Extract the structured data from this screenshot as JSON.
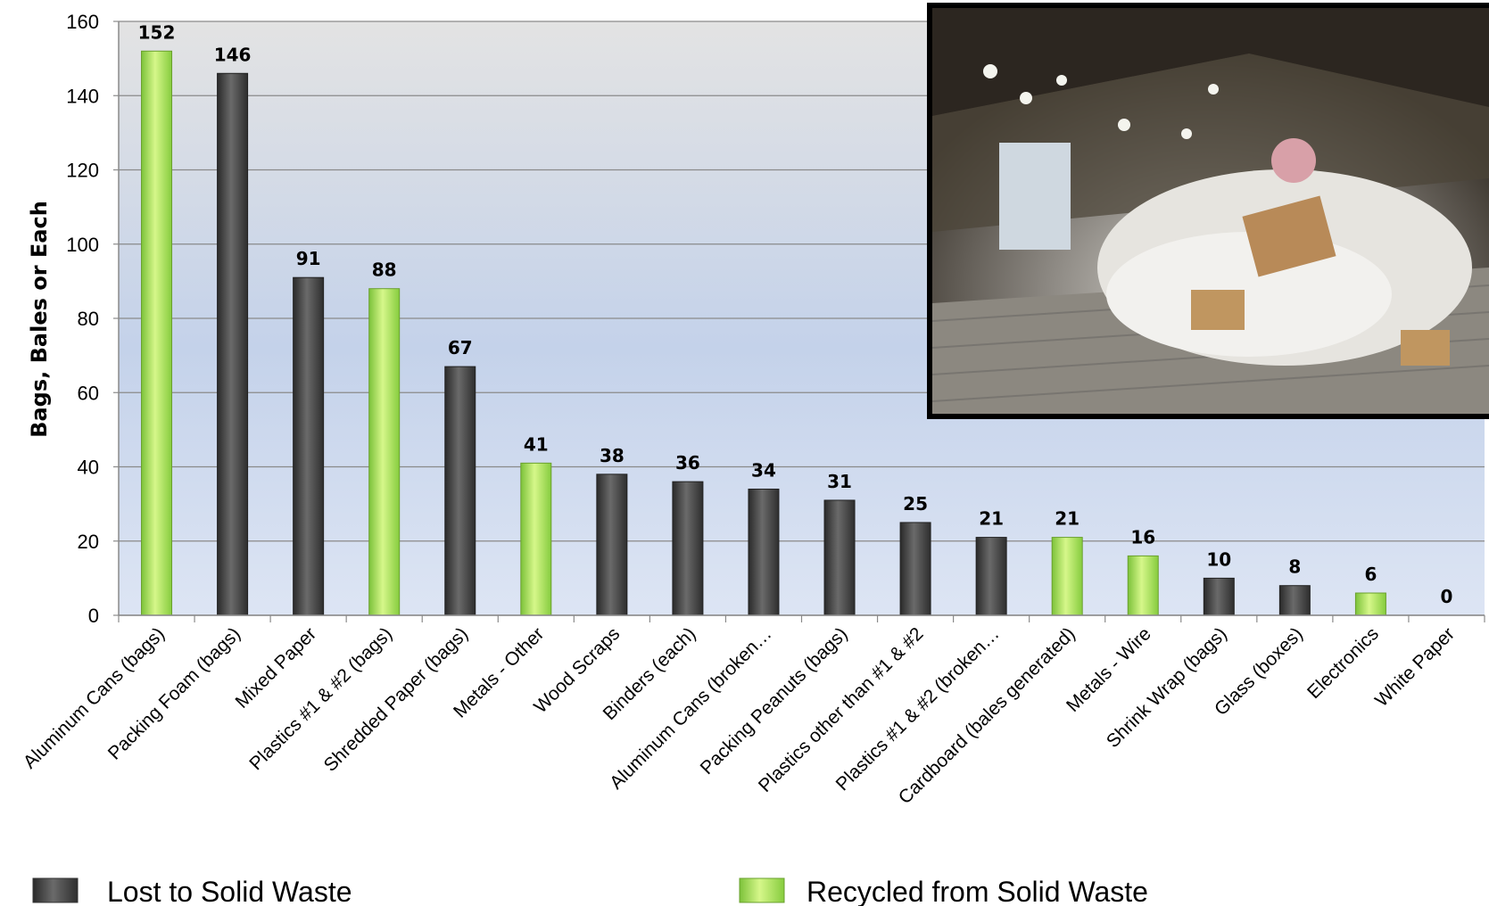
{
  "chart_data": {
    "type": "bar",
    "title": "",
    "xlabel": "",
    "ylabel": "Bags, Bales or Each",
    "ylim": [
      0,
      160
    ],
    "yticks": [
      0,
      20,
      40,
      60,
      80,
      100,
      120,
      140,
      160
    ],
    "grid": true,
    "legend_position": "bottom",
    "categories": [
      "Aluminum Cans (bags)",
      "Packing Foam (bags)",
      "Mixed Paper",
      "Plastics #1 & #2 (bags)",
      "Shredded Paper (bags)",
      "Metals - Other",
      "Wood Scraps",
      "Binders (each)",
      "Aluminum Cans (broken…",
      "Packing Peanuts (bags)",
      "Plastics other than #1 & #2",
      "Plastics #1 & #2 (broken…",
      "Cardboard (bales generated)",
      "Metals - Wire",
      "Shrink Wrap (bags)",
      "Glass (boxes)",
      "Electronics",
      "White Paper"
    ],
    "values": [
      152,
      146,
      91,
      88,
      67,
      41,
      38,
      36,
      34,
      31,
      25,
      21,
      21,
      16,
      10,
      8,
      6,
      0
    ],
    "bar_series": [
      1,
      0,
      0,
      1,
      0,
      1,
      0,
      0,
      0,
      0,
      0,
      0,
      1,
      1,
      0,
      0,
      1,
      0
    ],
    "series": [
      {
        "name": "Lost to Solid Waste",
        "color": "#4a4a4a"
      },
      {
        "name": "Recycled from Solid Waste",
        "color": "#a6e05a"
      }
    ]
  },
  "inset_image": {
    "icon": "recycling-facility-photo"
  }
}
